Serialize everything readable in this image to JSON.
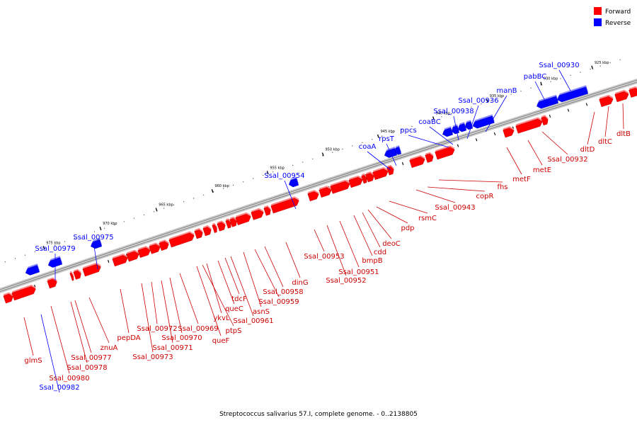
{
  "legend": {
    "forward": {
      "label": "Forward",
      "color": "#ff0000"
    },
    "reverse": {
      "label": "Reverse",
      "color": "#0000ff"
    }
  },
  "caption": "Streptococcus salivarius 57.I, complete genome. - 0..2138805",
  "tick_labels": [
    "925 kbp",
    "930 kbp",
    "935 kbp",
    "940 kbp",
    "945 kbp",
    "950 kbp",
    "955 kbp",
    "960 kbp",
    "965 kbp",
    "970 kbp",
    "975 kbp"
  ],
  "reverse_genes": [
    "Ssal_00930",
    "pabBC",
    "manB",
    "Ssal_00936",
    "Ssal_00938",
    "coaBC",
    "ppcs",
    "rpsT",
    "coaA",
    "Ssal_00954",
    "Ssal_00975",
    "Ssal_00979",
    "Ssal_00982"
  ],
  "forward_genes": [
    "dltB",
    "dltC",
    "dltD",
    "Ssal_00932",
    "metE",
    "metF",
    "fhs",
    "copR",
    "Ssal_00943",
    "rsmC",
    "pdp",
    "deoC",
    "cdd",
    "bmpB",
    "Ssal_00951",
    "Ssal_00952",
    "Ssal_00953",
    "dinG",
    "Ssal_00958",
    "Ssal_00959",
    "asnS",
    "Ssal_00961",
    "tdcF",
    "queC",
    "ykvL",
    "ptpS",
    "queF",
    "Ssal_00969",
    "Ssal_00970",
    "Ssal_00971",
    "Ssal_00972",
    "Ssal_00973",
    "pepDA",
    "znuA",
    "Ssal_00977",
    "Ssal_00978",
    "Ssal_00980",
    "glmS"
  ]
}
